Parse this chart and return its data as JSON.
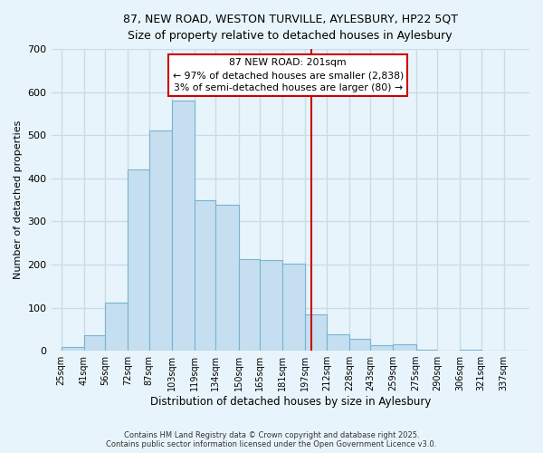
{
  "title": "87, NEW ROAD, WESTON TURVILLE, AYLESBURY, HP22 5QT",
  "subtitle": "Size of property relative to detached houses in Aylesbury",
  "xlabel": "Distribution of detached houses by size in Aylesbury",
  "ylabel": "Number of detached properties",
  "bin_labels": [
    "25sqm",
    "41sqm",
    "56sqm",
    "72sqm",
    "87sqm",
    "103sqm",
    "119sqm",
    "134sqm",
    "150sqm",
    "165sqm",
    "181sqm",
    "197sqm",
    "212sqm",
    "228sqm",
    "243sqm",
    "259sqm",
    "275sqm",
    "290sqm",
    "306sqm",
    "321sqm",
    "337sqm"
  ],
  "bin_edges": [
    25,
    41,
    56,
    72,
    87,
    103,
    119,
    134,
    150,
    165,
    181,
    197,
    212,
    228,
    243,
    259,
    275,
    290,
    306,
    321,
    337
  ],
  "bar_widths": [
    16,
    15,
    16,
    15,
    16,
    16,
    15,
    16,
    15,
    16,
    16,
    15,
    16,
    15,
    16,
    16,
    15,
    16,
    15,
    16,
    16
  ],
  "bar_heights": [
    8,
    35,
    112,
    420,
    510,
    580,
    350,
    338,
    213,
    210,
    202,
    85,
    37,
    27,
    12,
    14,
    2,
    0,
    2,
    1,
    0
  ],
  "bar_color": "#c5dff0",
  "bar_edgecolor": "#7ab4d0",
  "vline_x": 201,
  "vline_color": "#cc0000",
  "annotation_title": "87 NEW ROAD: 201sqm",
  "annotation_line1": "← 97% of detached houses are smaller (2,838)",
  "annotation_line2": "3% of semi-detached houses are larger (80) →",
  "annotation_box_color": "white",
  "annotation_box_edgecolor": "#cc0000",
  "ylim": [
    0,
    700
  ],
  "yticks": [
    0,
    100,
    200,
    300,
    400,
    500,
    600,
    700
  ],
  "xlim_min": 18,
  "xlim_max": 355,
  "background_color": "#e8f4fb",
  "grid_color": "#c8dce8",
  "footer_line1": "Contains HM Land Registry data © Crown copyright and database right 2025.",
  "footer_line2": "Contains public sector information licensed under the Open Government Licence v3.0."
}
